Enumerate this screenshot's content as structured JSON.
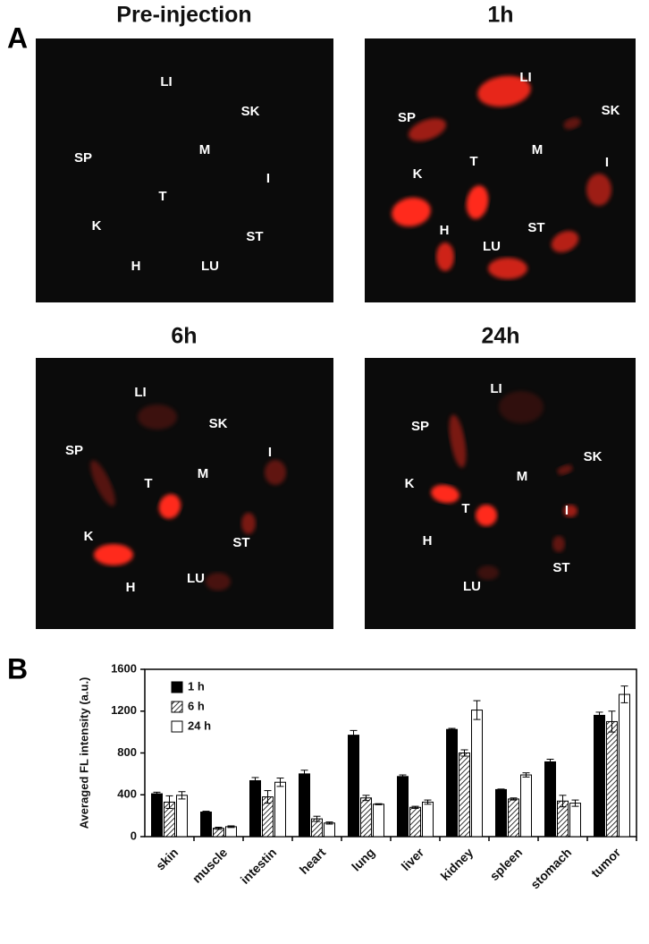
{
  "panel_labels": [
    "A",
    "B"
  ],
  "images": [
    {
      "title": "Pre-injection",
      "labels": [
        "LI",
        "SK",
        "SP",
        "M",
        "I",
        "T",
        "K",
        "ST",
        "H",
        "LU"
      ]
    },
    {
      "title": "1h",
      "labels": [
        "LI",
        "SP",
        "SK",
        "M",
        "K",
        "T",
        "I",
        "H",
        "ST",
        "LU"
      ]
    },
    {
      "title": "6h",
      "labels": [
        "LI",
        "SK",
        "SP",
        "I",
        "M",
        "T",
        "K",
        "ST",
        "H",
        "LU"
      ]
    },
    {
      "title": "24h",
      "labels": [
        "LI",
        "SP",
        "SK",
        "M",
        "K",
        "T",
        "I",
        "H",
        "ST",
        "LU"
      ]
    }
  ],
  "chart_data": {
    "type": "bar",
    "y_label": "Averaged FL intensity (a.u.)",
    "categories": [
      "skin",
      "muscle",
      "intestin",
      "heart",
      "lung",
      "liver",
      "kidney",
      "spleen",
      "stomach",
      "tumor"
    ],
    "series": [
      {
        "name": "1 h",
        "color": "#000000",
        "hatch": false,
        "values": [
          410,
          235,
          535,
          600,
          970,
          575,
          1025,
          450,
          715,
          1160
        ],
        "errors": [
          15,
          8,
          30,
          35,
          45,
          15,
          10,
          5,
          25,
          30
        ]
      },
      {
        "name": "6 h",
        "color": "#ffffff",
        "hatch": true,
        "values": [
          330,
          80,
          380,
          170,
          370,
          280,
          800,
          360,
          340,
          1100
        ],
        "errors": [
          60,
          10,
          60,
          25,
          25,
          10,
          30,
          10,
          55,
          100
        ]
      },
      {
        "name": "24 h",
        "color": "#ffffff",
        "hatch": false,
        "values": [
          395,
          95,
          520,
          130,
          310,
          330,
          1210,
          590,
          320,
          1360
        ],
        "errors": [
          35,
          8,
          40,
          10,
          5,
          20,
          90,
          20,
          30,
          80
        ]
      }
    ],
    "ylim": [
      0,
      1600
    ],
    "yticks": [
      0,
      400,
      800,
      1200,
      1600
    ],
    "legend": "top-left"
  }
}
